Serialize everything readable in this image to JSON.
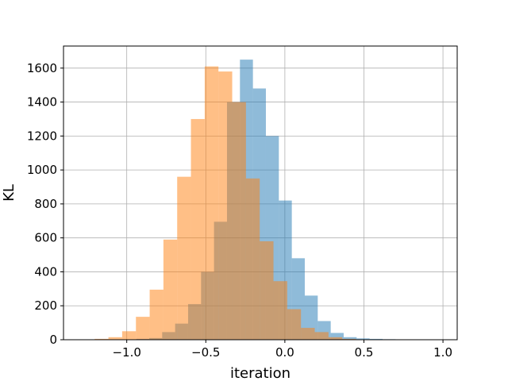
{
  "chart_data": {
    "type": "bar",
    "subtype": "overlaid-histogram",
    "title": "",
    "xlabel": "iteration",
    "ylabel": "KL",
    "xlim": [
      -1.4,
      1.09
    ],
    "ylim": [
      0,
      1730
    ],
    "grid": true,
    "legend": "none",
    "x_ticks": [
      -1.0,
      -0.5,
      0.0,
      0.5,
      1.0
    ],
    "x_tick_labels": [
      "−1.0",
      "−0.5",
      "0.0",
      "0.5",
      "1.0"
    ],
    "y_ticks": [
      0,
      200,
      400,
      600,
      800,
      1000,
      1200,
      1400,
      1600
    ],
    "y_tick_labels": [
      "0",
      "200",
      "400",
      "600",
      "800",
      "1000",
      "1200",
      "1400",
      "1600"
    ],
    "series": [
      {
        "color": "#1f77b4",
        "bin_edges": [
          -0.94,
          -0.858,
          -0.776,
          -0.694,
          -0.612,
          -0.53,
          -0.448,
          -0.366,
          -0.284,
          -0.202,
          -0.12,
          -0.038,
          0.044,
          0.126,
          0.208,
          0.29,
          0.372,
          0.454,
          0.536,
          0.618,
          0.7,
          0.782,
          0.864,
          0.946
        ],
        "counts": [
          5,
          10,
          45,
          95,
          210,
          400,
          695,
          1400,
          1650,
          1480,
          1200,
          820,
          480,
          260,
          110,
          40,
          15,
          8,
          5,
          3,
          1,
          0,
          1
        ]
      },
      {
        "color": "#ff7f0e",
        "bin_edges": [
          -1.29,
          -1.203,
          -1.116,
          -1.029,
          -0.942,
          -0.855,
          -0.768,
          -0.681,
          -0.594,
          -0.507,
          -0.42,
          -0.333,
          -0.246,
          -0.159,
          -0.072,
          0.015,
          0.102,
          0.189,
          0.276,
          0.363,
          0.45,
          0.537,
          0.624
        ],
        "counts": [
          2,
          5,
          15,
          50,
          135,
          295,
          590,
          960,
          1300,
          1610,
          1580,
          1400,
          950,
          580,
          345,
          180,
          70,
          45,
          15,
          5,
          2,
          1
        ]
      }
    ]
  }
}
